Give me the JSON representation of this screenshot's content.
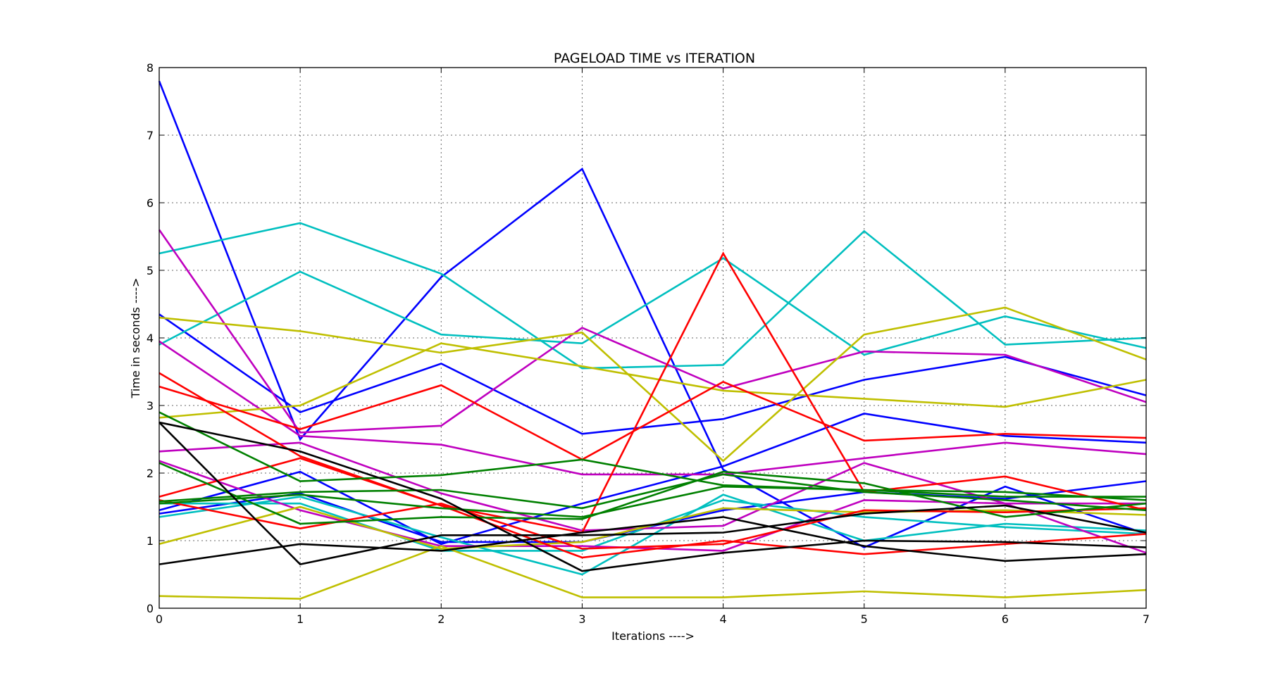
{
  "chart_data": {
    "type": "line",
    "title": "PAGELOAD TIME  vs  ITERATION",
    "xlabel": "Iterations ---->",
    "ylabel": "Time in seconds ---->",
    "xlim": [
      0,
      7
    ],
    "ylim": [
      0,
      8
    ],
    "xticks": [
      "0",
      "1",
      "2",
      "3",
      "4",
      "5",
      "6",
      "7"
    ],
    "yticks": [
      "0",
      "1",
      "2",
      "3",
      "4",
      "5",
      "6",
      "7",
      "8"
    ],
    "grid": true,
    "x": [
      0,
      1,
      2,
      3,
      4,
      5,
      6,
      7
    ],
    "series": [
      {
        "color": "#0000ff",
        "values": [
          7.8,
          2.5,
          4.9,
          6.5,
          2.05,
          0.9,
          1.8,
          1.1
        ]
      },
      {
        "color": "#0000ff",
        "values": [
          4.35,
          2.9,
          3.62,
          2.58,
          2.8,
          3.38,
          3.72,
          3.15
        ]
      },
      {
        "color": "#0000ff",
        "values": [
          1.45,
          2.02,
          0.95,
          1.55,
          2.1,
          2.88,
          2.55,
          2.45
        ]
      },
      {
        "color": "#0000ff",
        "values": [
          1.4,
          1.7,
          0.98,
          0.98,
          1.45,
          1.72,
          1.62,
          1.88
        ]
      },
      {
        "color": "#00bfbf",
        "values": [
          5.25,
          5.7,
          4.95,
          3.55,
          3.6,
          5.58,
          3.9,
          4.0
        ]
      },
      {
        "color": "#00bfbf",
        "values": [
          3.9,
          4.98,
          4.05,
          3.92,
          5.18,
          3.75,
          4.32,
          3.85
        ]
      },
      {
        "color": "#00bfbf",
        "values": [
          1.35,
          1.65,
          1.05,
          0.5,
          1.68,
          1.0,
          1.25,
          1.15
        ]
      },
      {
        "color": "#00bfbf",
        "values": [
          1.55,
          1.55,
          0.85,
          0.85,
          1.6,
          1.35,
          1.2,
          1.1
        ]
      },
      {
        "color": "#bf00bf",
        "values": [
          5.6,
          2.6,
          2.7,
          4.15,
          3.25,
          3.8,
          3.75,
          3.05
        ]
      },
      {
        "color": "#bf00bf",
        "values": [
          3.95,
          2.55,
          2.42,
          1.98,
          1.98,
          2.22,
          2.45,
          2.28
        ]
      },
      {
        "color": "#bf00bf",
        "values": [
          2.32,
          2.45,
          1.7,
          1.15,
          1.22,
          2.15,
          1.55,
          0.82
        ]
      },
      {
        "color": "#bf00bf",
        "values": [
          2.18,
          1.45,
          0.92,
          0.92,
          0.85,
          1.6,
          1.55,
          1.55
        ]
      },
      {
        "color": "#bfbf00",
        "values": [
          4.3,
          4.1,
          3.78,
          4.08,
          2.18,
          4.05,
          4.45,
          3.68
        ]
      },
      {
        "color": "#bfbf00",
        "values": [
          2.82,
          3.0,
          3.92,
          3.58,
          3.22,
          3.1,
          2.98,
          3.38
        ]
      },
      {
        "color": "#bfbf00",
        "values": [
          0.95,
          1.5,
          0.88,
          0.98,
          1.48,
          1.42,
          1.45,
          1.38
        ]
      },
      {
        "color": "#bfbf00",
        "values": [
          0.18,
          0.14,
          0.92,
          0.16,
          0.16,
          0.25,
          0.16,
          0.27
        ]
      },
      {
        "color": "#ff0000",
        "values": [
          3.48,
          2.25,
          1.52,
          1.12,
          5.25,
          1.72,
          1.95,
          1.45
        ]
      },
      {
        "color": "#ff0000",
        "values": [
          3.28,
          2.65,
          3.3,
          2.2,
          3.35,
          2.48,
          2.58,
          2.52
        ]
      },
      {
        "color": "#ff0000",
        "values": [
          1.65,
          2.22,
          1.52,
          0.75,
          1.0,
          0.8,
          0.95,
          1.1
        ]
      },
      {
        "color": "#ff0000",
        "values": [
          1.6,
          1.18,
          1.55,
          0.88,
          0.95,
          1.45,
          1.42,
          1.48
        ]
      },
      {
        "color": "#008000",
        "values": [
          2.9,
          1.88,
          1.97,
          2.2,
          1.82,
          1.75,
          1.72,
          1.6
        ]
      },
      {
        "color": "#008000",
        "values": [
          2.15,
          1.25,
          1.35,
          1.32,
          2.02,
          1.85,
          1.35,
          1.55
        ]
      },
      {
        "color": "#008000",
        "values": [
          1.58,
          1.72,
          1.75,
          1.48,
          1.98,
          1.72,
          1.6,
          1.45
        ]
      },
      {
        "color": "#008000",
        "values": [
          1.55,
          1.68,
          1.48,
          1.35,
          1.8,
          1.75,
          1.65,
          1.65
        ]
      },
      {
        "color": "#000000",
        "values": [
          2.75,
          2.32,
          1.62,
          0.55,
          0.82,
          1.0,
          0.98,
          0.9
        ]
      },
      {
        "color": "#000000",
        "values": [
          2.75,
          0.65,
          1.08,
          1.08,
          1.12,
          1.4,
          1.52,
          1.12
        ]
      },
      {
        "color": "#000000",
        "values": [
          0.65,
          0.95,
          0.85,
          1.12,
          1.35,
          0.92,
          0.7,
          0.8
        ]
      }
    ]
  }
}
